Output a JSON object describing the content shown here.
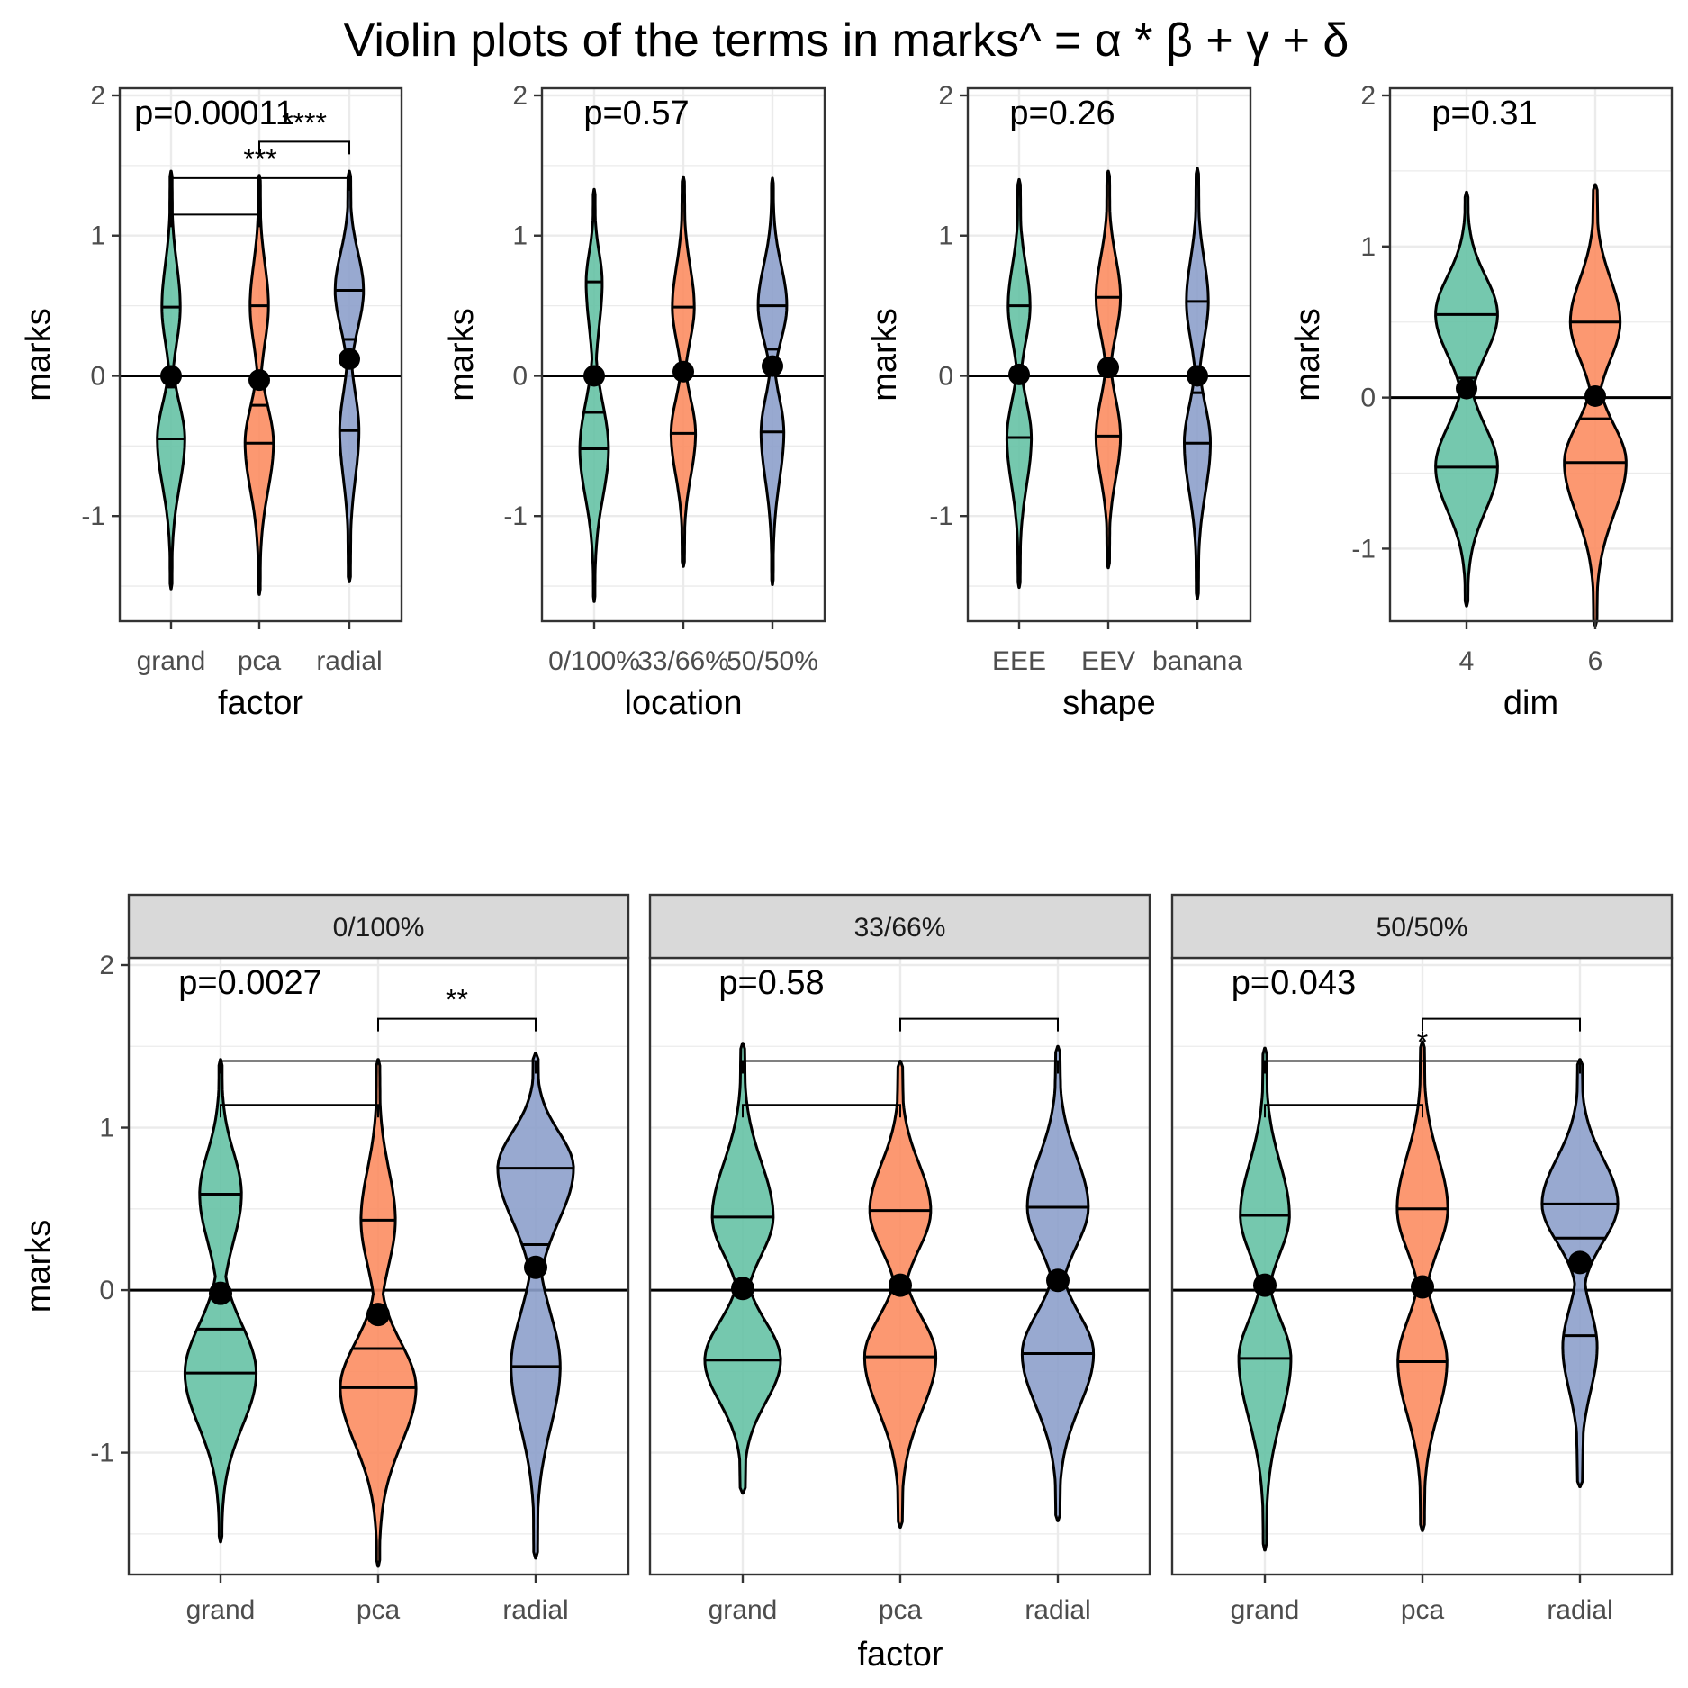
{
  "title": "Violin plots of the terms in marks^ = α * β + γ + δ",
  "colors": {
    "violin_fills": [
      "#66c2a5",
      "#fc8d62",
      "#8da0cb"
    ],
    "outline": "#000000",
    "strip_fill": "#d9d9d9",
    "grid": "#ebebeb",
    "tick_text": "#4d4d4d"
  },
  "chart_data": [
    {
      "type": "violin",
      "ylabel": "marks",
      "xlabel": "factor",
      "categories": [
        "grand",
        "pca",
        "radial"
      ],
      "ylim": [
        -1.75,
        2.0
      ],
      "yticks": [
        -1,
        0,
        1,
        2
      ],
      "p_label": "p=0.00011",
      "violins": [
        {
          "min": -1.52,
          "max": 1.46,
          "q1": -0.45,
          "median": -0.08,
          "q3": 0.49,
          "mean": 0.0,
          "modes": [
            -0.45,
            0.49
          ],
          "mode_halfwidths": [
            0.32,
            0.21
          ],
          "waist": 0.04
        },
        {
          "min": -1.56,
          "max": 1.43,
          "q1": -0.48,
          "median": -0.21,
          "q3": 0.5,
          "mean": -0.03,
          "modes": [
            -0.48,
            0.5
          ],
          "mode_halfwidths": [
            0.33,
            0.21
          ],
          "waist": 0.04
        },
        {
          "min": -1.47,
          "max": 1.46,
          "q1": -0.39,
          "median": 0.26,
          "q3": 0.61,
          "mean": 0.12,
          "modes": [
            -0.39,
            0.61
          ],
          "mode_halfwidths": [
            0.22,
            0.33
          ],
          "waist": 0.05
        }
      ],
      "brackets": [
        {
          "from": 0,
          "to": 1,
          "y": 1.15,
          "label": ""
        },
        {
          "from": 0,
          "to": 2,
          "y": 1.41,
          "label": "***"
        },
        {
          "from": 1,
          "to": 2,
          "y": 1.67,
          "label": "****"
        }
      ]
    },
    {
      "type": "violin",
      "ylabel": "marks",
      "xlabel": "location",
      "categories": [
        "0/100%",
        "33/66%",
        "50/50%"
      ],
      "ylim": [
        -1.75,
        2.0
      ],
      "yticks": [
        -1,
        0,
        1,
        2
      ],
      "p_label": "p=0.57",
      "violins": [
        {
          "min": -1.61,
          "max": 1.33,
          "q1": -0.52,
          "median": -0.26,
          "q3": 0.67,
          "mean": 0.0,
          "modes": [
            -0.52,
            0.67
          ],
          "mode_halfwidths": [
            0.33,
            0.18
          ],
          "waist": 0.02
        },
        {
          "min": -1.36,
          "max": 1.42,
          "q1": -0.41,
          "median": 0.02,
          "q3": 0.49,
          "mean": 0.03,
          "modes": [
            -0.41,
            0.49
          ],
          "mode_halfwidths": [
            0.28,
            0.25
          ],
          "waist": 0.05
        },
        {
          "min": -1.49,
          "max": 1.41,
          "q1": -0.4,
          "median": 0.19,
          "q3": 0.5,
          "mean": 0.07,
          "modes": [
            -0.4,
            0.5
          ],
          "mode_halfwidths": [
            0.26,
            0.33
          ],
          "waist": 0.03
        }
      ],
      "brackets": []
    },
    {
      "type": "violin",
      "ylabel": "marks",
      "xlabel": "shape",
      "categories": [
        "EEE",
        "EEV",
        "banana"
      ],
      "ylim": [
        -1.75,
        2.0
      ],
      "yticks": [
        -1,
        0,
        1,
        2
      ],
      "p_label": "p=0.26",
      "violins": [
        {
          "min": -1.51,
          "max": 1.4,
          "q1": -0.44,
          "median": 0.0,
          "q3": 0.5,
          "mean": 0.01,
          "modes": [
            -0.44,
            0.5
          ],
          "mode_halfwidths": [
            0.28,
            0.25
          ],
          "waist": 0.05
        },
        {
          "min": -1.37,
          "max": 1.46,
          "q1": -0.43,
          "median": 0.05,
          "q3": 0.56,
          "mean": 0.06,
          "modes": [
            -0.43,
            0.56
          ],
          "mode_halfwidths": [
            0.28,
            0.28
          ],
          "waist": 0.05
        },
        {
          "min": -1.59,
          "max": 1.48,
          "q1": -0.48,
          "median": -0.12,
          "q3": 0.53,
          "mean": 0.0,
          "modes": [
            -0.48,
            0.53
          ],
          "mode_halfwidths": [
            0.3,
            0.25
          ],
          "waist": 0.05
        }
      ],
      "brackets": []
    },
    {
      "type": "violin",
      "ylabel": "marks",
      "xlabel": "dim",
      "categories": [
        "4",
        "6"
      ],
      "ylim": [
        -1.48,
        2.0
      ],
      "yticks": [
        -1,
        0,
        1,
        2
      ],
      "p_label": "p=0.31",
      "violins": [
        {
          "min": -1.38,
          "max": 1.36,
          "q1": -0.46,
          "median": 0.13,
          "q3": 0.55,
          "mean": 0.06,
          "modes": [
            -0.46,
            0.55
          ],
          "mode_halfwidths": [
            0.5,
            0.5
          ],
          "waist": 0.03
        },
        {
          "min": -1.51,
          "max": 1.41,
          "q1": -0.43,
          "median": -0.14,
          "q3": 0.5,
          "mean": 0.01,
          "modes": [
            -0.43,
            0.5
          ],
          "mode_halfwidths": [
            0.5,
            0.4
          ],
          "waist": 0.06
        }
      ],
      "brackets": []
    },
    {
      "type": "violin",
      "strip": "0/100%",
      "ylabel": "marks",
      "xlabel": "factor",
      "categories": [
        "grand",
        "pca",
        "radial"
      ],
      "ylim": [
        -1.75,
        2.0
      ],
      "yticks": [
        -1,
        0,
        1,
        2
      ],
      "p_label": "p=0.0027",
      "violins": [
        {
          "min": -1.55,
          "max": 1.42,
          "q1": -0.51,
          "median": -0.24,
          "q3": 0.59,
          "mean": -0.02,
          "modes": [
            -0.51,
            0.59
          ],
          "mode_halfwidths": [
            0.47,
            0.27
          ],
          "waist": 0.02
        },
        {
          "min": -1.7,
          "max": 1.42,
          "q1": -0.6,
          "median": -0.36,
          "q3": 0.43,
          "mean": -0.15,
          "modes": [
            -0.6,
            0.43
          ],
          "mode_halfwidths": [
            0.5,
            0.22
          ],
          "waist": 0.03
        },
        {
          "min": -1.65,
          "max": 1.46,
          "q1": -0.47,
          "median": 0.28,
          "q3": 0.75,
          "mean": 0.14,
          "modes": [
            -0.47,
            0.75
          ],
          "mode_halfwidths": [
            0.32,
            0.5
          ],
          "waist": 0.04
        }
      ],
      "brackets": [
        {
          "from": 0,
          "to": 1,
          "y": 1.14,
          "label": ""
        },
        {
          "from": 0,
          "to": 2,
          "y": 1.41,
          "label": ""
        },
        {
          "from": 1,
          "to": 2,
          "y": 1.67,
          "label": "**"
        }
      ]
    },
    {
      "type": "violin",
      "strip": "33/66%",
      "ylabel": "",
      "xlabel": "",
      "categories": [
        "grand",
        "pca",
        "radial"
      ],
      "ylim": [
        -1.75,
        2.0
      ],
      "yticks": [
        -1,
        0,
        1,
        2
      ],
      "p_label": "p=0.58",
      "violins": [
        {
          "min": -1.25,
          "max": 1.52,
          "q1": -0.43,
          "median": 0.0,
          "q3": 0.45,
          "mean": 0.01,
          "modes": [
            -0.43,
            0.45
          ],
          "mode_halfwidths": [
            0.5,
            0.4
          ],
          "waist": 0.06
        },
        {
          "min": -1.46,
          "max": 1.41,
          "q1": -0.41,
          "median": 0.03,
          "q3": 0.49,
          "mean": 0.03,
          "modes": [
            -0.41,
            0.49
          ],
          "mode_halfwidths": [
            0.47,
            0.4
          ],
          "waist": 0.06
        },
        {
          "min": -1.42,
          "max": 1.5,
          "q1": -0.39,
          "median": 0.06,
          "q3": 0.51,
          "mean": 0.06,
          "modes": [
            -0.39,
            0.51
          ],
          "mode_halfwidths": [
            0.47,
            0.4
          ],
          "waist": 0.06
        }
      ],
      "brackets": [
        {
          "from": 0,
          "to": 1,
          "y": 1.14,
          "label": ""
        },
        {
          "from": 0,
          "to": 2,
          "y": 1.41,
          "label": ""
        },
        {
          "from": 1,
          "to": 2,
          "y": 1.67,
          "label": ""
        }
      ]
    },
    {
      "type": "violin",
      "strip": "50/50%",
      "ylabel": "",
      "xlabel": "",
      "categories": [
        "grand",
        "pca",
        "radial"
      ],
      "ylim": [
        -1.75,
        2.0
      ],
      "yticks": [
        -1,
        0,
        1,
        2
      ],
      "p_label": "p=0.043",
      "violins": [
        {
          "min": -1.6,
          "max": 1.49,
          "q1": -0.42,
          "median": 0.0,
          "q3": 0.46,
          "mean": 0.03,
          "modes": [
            -0.42,
            0.46
          ],
          "mode_halfwidths": [
            0.34,
            0.32
          ],
          "waist": 0.05
        },
        {
          "min": -1.48,
          "max": 1.53,
          "q1": -0.44,
          "median": 0.02,
          "q3": 0.5,
          "mean": 0.02,
          "modes": [
            -0.44,
            0.5
          ],
          "mode_halfwidths": [
            0.32,
            0.33
          ],
          "waist": 0.05
        },
        {
          "min": -1.21,
          "max": 1.42,
          "q1": -0.28,
          "median": 0.32,
          "q3": 0.53,
          "mean": 0.17,
          "modes": [
            -0.35,
            0.53
          ],
          "mode_halfwidths": [
            0.22,
            0.5
          ],
          "waist": 0.06
        }
      ],
      "brackets": [
        {
          "from": 0,
          "to": 1,
          "y": 1.14,
          "label": ""
        },
        {
          "from": 0,
          "to": 2,
          "y": 1.41,
          "label": "*"
        },
        {
          "from": 1,
          "to": 2,
          "y": 1.67,
          "label": ""
        }
      ]
    }
  ]
}
